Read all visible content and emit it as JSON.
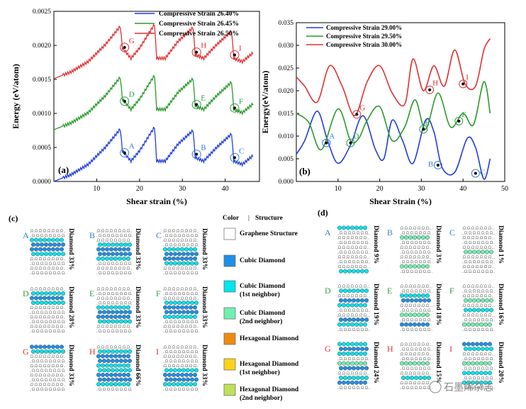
{
  "colors": {
    "blue": "#1f3ddb",
    "green": "#2a9a2a",
    "red": "#e03131",
    "label_blue": "#3a7fd0",
    "label_green": "#2f9e44",
    "label_red": "#e03131"
  },
  "chart_data": [
    {
      "panel": "(a)",
      "type": "line",
      "xlabel": "Shear strain (%)",
      "ylabel": "Energy (eV/atom)",
      "xlim": [
        0,
        48
      ],
      "ylim": [
        0,
        0.0025
      ],
      "xticks": [
        10,
        20,
        30,
        40
      ],
      "yticks": [
        0.0,
        0.0005,
        0.001,
        0.0015,
        0.002,
        0.0025
      ],
      "ytick_labels": [
        "0.0000",
        "0.0005",
        "0.0010",
        "0.0015",
        "0.0020",
        "0.0025"
      ],
      "legend_position": "top-center",
      "series": [
        {
          "name": "Compressive Strain  26.40%",
          "color": "blue",
          "offset": 0.0,
          "amp": 1.0
        },
        {
          "name": "Compressive Strain  26.45%",
          "color": "green",
          "offset": 0.00076,
          "amp": 1.0
        },
        {
          "name": "Compressive Strain  26.50%",
          "color": "red",
          "offset": 0.00151,
          "amp": 1.0
        }
      ],
      "base_profile": {
        "x": [
          0,
          4,
          8,
          12,
          15.5,
          16,
          18,
          20,
          23.5,
          24,
          26,
          29,
          32.5,
          33,
          35,
          38,
          41.5,
          42,
          44,
          46.5
        ],
        "y": [
          0,
          0.0001,
          0.00025,
          0.0005,
          0.00077,
          0.00045,
          0.0003,
          0.00045,
          0.0008,
          0.0003,
          0.0003,
          0.00055,
          0.00075,
          0.00035,
          0.0003,
          0.0005,
          0.0007,
          0.0003,
          0.00025,
          0.00038
        ]
      },
      "markers": [
        {
          "label": "A",
          "series": 0,
          "x": 16.5,
          "y": 0.00042
        },
        {
          "label": "B",
          "series": 0,
          "x": 33.3,
          "y": 0.0004
        },
        {
          "label": "C",
          "series": 0,
          "x": 42.2,
          "y": 0.00035
        },
        {
          "label": "D",
          "series": 1,
          "x": 16.5,
          "y": 0.00118
        },
        {
          "label": "E",
          "series": 1,
          "x": 33.3,
          "y": 0.00113
        },
        {
          "label": "F",
          "series": 1,
          "x": 42.2,
          "y": 0.00108
        },
        {
          "label": "G",
          "series": 2,
          "x": 16.5,
          "y": 0.00197
        },
        {
          "label": "H",
          "series": 2,
          "x": 33.3,
          "y": 0.0019
        },
        {
          "label": "I",
          "series": 2,
          "x": 42.2,
          "y": 0.00186
        }
      ]
    },
    {
      "panel": "(b)",
      "type": "line",
      "xlabel": "Shear Strain (%)",
      "ylabel": "Energy(eV/atom)",
      "xlim": [
        0,
        50
      ],
      "ylim": [
        0,
        0.035
      ],
      "xticks": [
        10,
        20,
        30,
        40,
        50
      ],
      "yticks": [
        0.0,
        0.005,
        0.01,
        0.015,
        0.02,
        0.025,
        0.03,
        0.035
      ],
      "ytick_labels": [
        "0.000",
        "0.005",
        "0.010",
        "0.015",
        "0.020",
        "0.025",
        "0.030",
        "0.035"
      ],
      "legend_position": "top-left",
      "series": [
        {
          "name": "Compressive Strain 29.00%",
          "color": "blue",
          "x": [
            0,
            2,
            5,
            7.5,
            10,
            13,
            16,
            19,
            21,
            23,
            25.5,
            28,
            31,
            33,
            35,
            38,
            41,
            43,
            45,
            46.5
          ],
          "y": [
            0.006,
            0.009,
            0.0155,
            0.009,
            0.004,
            0.008,
            0.0145,
            0.007,
            0.005,
            0.0135,
            0.009,
            0.004,
            0.0135,
            0.011,
            0.003,
            0.002,
            0.0095,
            0.0075,
            0.0005,
            0.005
          ]
        },
        {
          "name": "Compressive Strain 29.50%",
          "color": "green",
          "x": [
            0,
            3,
            6,
            10,
            13,
            15,
            17,
            20,
            23,
            26,
            28.5,
            31,
            34,
            37,
            40,
            42.5,
            45,
            46.5
          ],
          "y": [
            0.015,
            0.013,
            0.007,
            0.016,
            0.009,
            0.0095,
            0.0135,
            0.0165,
            0.009,
            0.012,
            0.018,
            0.0115,
            0.0195,
            0.012,
            0.015,
            0.0125,
            0.022,
            0.015
          ]
        },
        {
          "name": "Compressive Strain 30.00%",
          "color": "red",
          "x": [
            0,
            2,
            5,
            8,
            11,
            14,
            17,
            20,
            23,
            26,
            28,
            30.5,
            33,
            35.5,
            38,
            40.5,
            43,
            45,
            46.5
          ],
          "y": [
            0.023,
            0.021,
            0.0175,
            0.0255,
            0.021,
            0.0145,
            0.022,
            0.0255,
            0.0195,
            0.017,
            0.027,
            0.02,
            0.0255,
            0.021,
            0.029,
            0.0215,
            0.021,
            0.029,
            0.0315
          ]
        }
      ],
      "markers": [
        {
          "label": "A",
          "series": 0,
          "x": 7.2,
          "y": 0.0085
        },
        {
          "label": "B",
          "series": 0,
          "x": 34.0,
          "y": 0.0036
        },
        {
          "label": "C",
          "series": 0,
          "x": 43.0,
          "y": 0.0018
        },
        {
          "label": "D",
          "series": 1,
          "x": 13.0,
          "y": 0.0085
        },
        {
          "label": "E",
          "series": 1,
          "x": 30.5,
          "y": 0.0115
        },
        {
          "label": "F",
          "series": 1,
          "x": 39.0,
          "y": 0.0133
        },
        {
          "label": "G",
          "series": 2,
          "x": 14.5,
          "y": 0.0148
        },
        {
          "label": "H",
          "series": 2,
          "x": 32.0,
          "y": 0.0202
        },
        {
          "label": "I",
          "series": 2,
          "x": 40.0,
          "y": 0.0215
        }
      ]
    }
  ],
  "panel_c": {
    "label": "(c)",
    "cells": [
      {
        "letter": "A",
        "caption": "Diamond 33%",
        "color": "label_blue"
      },
      {
        "letter": "B",
        "caption": "Diamond 33%",
        "color": "label_blue"
      },
      {
        "letter": "C",
        "caption": "Diamond 33%",
        "color": "label_blue"
      },
      {
        "letter": "D",
        "caption": "Diamond 28%",
        "color": "label_green"
      },
      {
        "letter": "E",
        "caption": "Diamond 33%",
        "color": "label_green"
      },
      {
        "letter": "F",
        "caption": "Diamond 33%",
        "color": "label_green"
      },
      {
        "letter": "G",
        "caption": "Diamond 33%",
        "color": "label_red"
      },
      {
        "letter": "H",
        "caption": "Diamond 66%",
        "color": "label_red"
      },
      {
        "letter": "I",
        "caption": "Diamond 33%",
        "color": "label_red"
      }
    ]
  },
  "panel_d": {
    "label": "(d)",
    "cells": [
      {
        "letter": "A",
        "caption": "Diamond 9%",
        "color": "label_blue"
      },
      {
        "letter": "B",
        "caption": "Diamond 3%",
        "color": "label_blue"
      },
      {
        "letter": "C",
        "caption": "Diamond 1%",
        "color": "label_blue"
      },
      {
        "letter": "D",
        "caption": "Diamond 19%",
        "color": "label_green"
      },
      {
        "letter": "E",
        "caption": "Diamond 18%",
        "color": "label_green"
      },
      {
        "letter": "F",
        "caption": "Diamond 16%",
        "color": "label_green"
      },
      {
        "letter": "G",
        "caption": "Diamond 24%",
        "color": "label_red"
      },
      {
        "letter": "H",
        "caption": "Diamond 15%",
        "color": "label_red"
      },
      {
        "letter": "I",
        "caption": "Diamond 20%",
        "color": "label_red"
      }
    ]
  },
  "legend_table": {
    "header_color": "Color",
    "header_sep": "|",
    "header_structure": "Structure",
    "items": [
      {
        "label": "Graphene Structure",
        "swatch": "#ffffff"
      },
      {
        "label": "Cubic Diamond",
        "swatch": "#1e8fe6"
      },
      {
        "label": "Cubic Diamond (1st neighbor)",
        "swatch": "#00e5ee"
      },
      {
        "label": "Cubic Diamond (2nd neighbor)",
        "swatch": "#6ff0b0"
      },
      {
        "label": "Hexagonal Diamond",
        "swatch": "#f08a10"
      },
      {
        "label": "Hexagonal Diamond (1st neighbor)",
        "swatch": "#ffd21a"
      },
      {
        "label": "Hexagonal Diamond (2nd neighbor)",
        "swatch": "#bfe05a"
      }
    ]
  },
  "watermark": "石墨烯杂志"
}
